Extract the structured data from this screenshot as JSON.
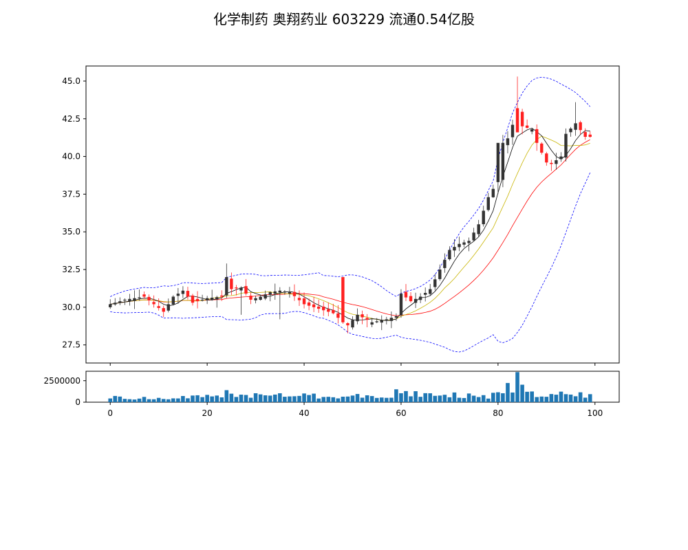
{
  "chart_data": {
    "type": "candlestick",
    "title": "化学制药 奥翔药业 603229 流通0.54亿股",
    "xlabel": "",
    "ylabel": "",
    "x_ticks": [
      0,
      20,
      40,
      60,
      80,
      100
    ],
    "x_tick_labels": [
      "0",
      "20",
      "40",
      "60",
      "80",
      "100"
    ],
    "xlim": [
      -5,
      105
    ],
    "price_ylim": [
      26.3,
      46.0
    ],
    "price_ticks": [
      27.5,
      30.0,
      32.5,
      35.0,
      37.5,
      40.0,
      42.5,
      45.0
    ],
    "price_tick_labels": [
      "27.5",
      "30.0",
      "32.5",
      "35.0",
      "37.5",
      "40.0",
      "42.5",
      "45.0"
    ],
    "volume_ylim": [
      0,
      3600000
    ],
    "volume_ticks": [
      0,
      2500000
    ],
    "volume_tick_labels": [
      "0",
      "2500000"
    ],
    "colors": {
      "up": "#333333",
      "down": "#ff2020",
      "ma5": "#000000",
      "ma10": "#c8b400",
      "ma20": "#ff0000",
      "boll": "#0000ff",
      "volume": "#1f77b4"
    },
    "anchors": [
      [
        0,
        30.2
      ],
      [
        3,
        30.5
      ],
      [
        7,
        30.7
      ],
      [
        11,
        29.7
      ],
      [
        13,
        30.7
      ],
      [
        15,
        31.1
      ],
      [
        17,
        30.3
      ],
      [
        20,
        30.6
      ],
      [
        23,
        30.7
      ],
      [
        24,
        32.0
      ],
      [
        25,
        31.2
      ],
      [
        27,
        31.3
      ],
      [
        29,
        30.5
      ],
      [
        31,
        30.7
      ],
      [
        33,
        31.0
      ],
      [
        35,
        31.1
      ],
      [
        37,
        31.0
      ],
      [
        40,
        30.2
      ],
      [
        43,
        29.9
      ],
      [
        46,
        29.6
      ],
      [
        48,
        29.0
      ],
      [
        49,
        28.8
      ],
      [
        51,
        29.5
      ],
      [
        54,
        29.0
      ],
      [
        57,
        29.2
      ],
      [
        59,
        29.4
      ],
      [
        60,
        30.9
      ],
      [
        62,
        30.4
      ],
      [
        64,
        30.7
      ],
      [
        66,
        31.2
      ],
      [
        68,
        32.5
      ],
      [
        70,
        33.8
      ],
      [
        72,
        34.2
      ],
      [
        74,
        34.4
      ],
      [
        76,
        35.5
      ],
      [
        78,
        37.3
      ],
      [
        80,
        38.4
      ],
      [
        81,
        40.9
      ],
      [
        82,
        41.2
      ],
      [
        84,
        43.0
      ],
      [
        85,
        42.0
      ],
      [
        87,
        41.8
      ],
      [
        88,
        40.9
      ],
      [
        90,
        39.6
      ],
      [
        91,
        39.5
      ],
      [
        93,
        40.0
      ],
      [
        94,
        41.5
      ],
      [
        96,
        42.2
      ],
      [
        98,
        41.3
      ],
      [
        99,
        41.3
      ]
    ],
    "volume_anchors": [
      [
        0,
        900000
      ],
      [
        10,
        600000
      ],
      [
        24,
        1400000
      ],
      [
        32,
        1300000
      ],
      [
        48,
        1000000
      ],
      [
        60,
        1500000
      ],
      [
        78,
        1200000
      ],
      [
        84,
        3500000
      ],
      [
        88,
        1500000
      ],
      [
        92,
        1600000
      ],
      [
        96,
        1500000
      ]
    ]
  }
}
